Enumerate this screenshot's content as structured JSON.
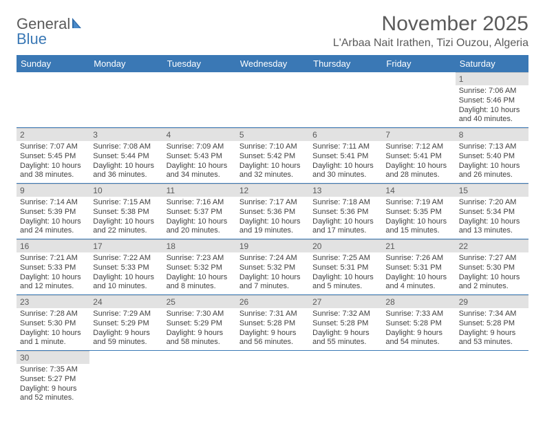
{
  "brand": {
    "part1": "General",
    "part2": "Blue"
  },
  "title": "November 2025",
  "location": "L'Arbaa Nait Irathen, Tizi Ouzou, Algeria",
  "colors": {
    "headerBar": "#3a78b5",
    "dayBar": "#e2e2e2",
    "divider": "#3a78b5",
    "text": "#404040",
    "titleText": "#5a5a5a",
    "background": "#ffffff"
  },
  "typography": {
    "body_fontsize": 11,
    "header_fontsize": 13,
    "title_fontsize": 30,
    "location_fontsize": 16
  },
  "weekdays": [
    "Sunday",
    "Monday",
    "Tuesday",
    "Wednesday",
    "Thursday",
    "Friday",
    "Saturday"
  ],
  "weeks": [
    [
      null,
      null,
      null,
      null,
      null,
      null,
      {
        "n": "1",
        "sunrise": "Sunrise: 7:06 AM",
        "sunset": "Sunset: 5:46 PM",
        "day1": "Daylight: 10 hours",
        "day2": "and 40 minutes."
      }
    ],
    [
      {
        "n": "2",
        "sunrise": "Sunrise: 7:07 AM",
        "sunset": "Sunset: 5:45 PM",
        "day1": "Daylight: 10 hours",
        "day2": "and 38 minutes."
      },
      {
        "n": "3",
        "sunrise": "Sunrise: 7:08 AM",
        "sunset": "Sunset: 5:44 PM",
        "day1": "Daylight: 10 hours",
        "day2": "and 36 minutes."
      },
      {
        "n": "4",
        "sunrise": "Sunrise: 7:09 AM",
        "sunset": "Sunset: 5:43 PM",
        "day1": "Daylight: 10 hours",
        "day2": "and 34 minutes."
      },
      {
        "n": "5",
        "sunrise": "Sunrise: 7:10 AM",
        "sunset": "Sunset: 5:42 PM",
        "day1": "Daylight: 10 hours",
        "day2": "and 32 minutes."
      },
      {
        "n": "6",
        "sunrise": "Sunrise: 7:11 AM",
        "sunset": "Sunset: 5:41 PM",
        "day1": "Daylight: 10 hours",
        "day2": "and 30 minutes."
      },
      {
        "n": "7",
        "sunrise": "Sunrise: 7:12 AM",
        "sunset": "Sunset: 5:41 PM",
        "day1": "Daylight: 10 hours",
        "day2": "and 28 minutes."
      },
      {
        "n": "8",
        "sunrise": "Sunrise: 7:13 AM",
        "sunset": "Sunset: 5:40 PM",
        "day1": "Daylight: 10 hours",
        "day2": "and 26 minutes."
      }
    ],
    [
      {
        "n": "9",
        "sunrise": "Sunrise: 7:14 AM",
        "sunset": "Sunset: 5:39 PM",
        "day1": "Daylight: 10 hours",
        "day2": "and 24 minutes."
      },
      {
        "n": "10",
        "sunrise": "Sunrise: 7:15 AM",
        "sunset": "Sunset: 5:38 PM",
        "day1": "Daylight: 10 hours",
        "day2": "and 22 minutes."
      },
      {
        "n": "11",
        "sunrise": "Sunrise: 7:16 AM",
        "sunset": "Sunset: 5:37 PM",
        "day1": "Daylight: 10 hours",
        "day2": "and 20 minutes."
      },
      {
        "n": "12",
        "sunrise": "Sunrise: 7:17 AM",
        "sunset": "Sunset: 5:36 PM",
        "day1": "Daylight: 10 hours",
        "day2": "and 19 minutes."
      },
      {
        "n": "13",
        "sunrise": "Sunrise: 7:18 AM",
        "sunset": "Sunset: 5:36 PM",
        "day1": "Daylight: 10 hours",
        "day2": "and 17 minutes."
      },
      {
        "n": "14",
        "sunrise": "Sunrise: 7:19 AM",
        "sunset": "Sunset: 5:35 PM",
        "day1": "Daylight: 10 hours",
        "day2": "and 15 minutes."
      },
      {
        "n": "15",
        "sunrise": "Sunrise: 7:20 AM",
        "sunset": "Sunset: 5:34 PM",
        "day1": "Daylight: 10 hours",
        "day2": "and 13 minutes."
      }
    ],
    [
      {
        "n": "16",
        "sunrise": "Sunrise: 7:21 AM",
        "sunset": "Sunset: 5:33 PM",
        "day1": "Daylight: 10 hours",
        "day2": "and 12 minutes."
      },
      {
        "n": "17",
        "sunrise": "Sunrise: 7:22 AM",
        "sunset": "Sunset: 5:33 PM",
        "day1": "Daylight: 10 hours",
        "day2": "and 10 minutes."
      },
      {
        "n": "18",
        "sunrise": "Sunrise: 7:23 AM",
        "sunset": "Sunset: 5:32 PM",
        "day1": "Daylight: 10 hours",
        "day2": "and 8 minutes."
      },
      {
        "n": "19",
        "sunrise": "Sunrise: 7:24 AM",
        "sunset": "Sunset: 5:32 PM",
        "day1": "Daylight: 10 hours",
        "day2": "and 7 minutes."
      },
      {
        "n": "20",
        "sunrise": "Sunrise: 7:25 AM",
        "sunset": "Sunset: 5:31 PM",
        "day1": "Daylight: 10 hours",
        "day2": "and 5 minutes."
      },
      {
        "n": "21",
        "sunrise": "Sunrise: 7:26 AM",
        "sunset": "Sunset: 5:31 PM",
        "day1": "Daylight: 10 hours",
        "day2": "and 4 minutes."
      },
      {
        "n": "22",
        "sunrise": "Sunrise: 7:27 AM",
        "sunset": "Sunset: 5:30 PM",
        "day1": "Daylight: 10 hours",
        "day2": "and 2 minutes."
      }
    ],
    [
      {
        "n": "23",
        "sunrise": "Sunrise: 7:28 AM",
        "sunset": "Sunset: 5:30 PM",
        "day1": "Daylight: 10 hours",
        "day2": "and 1 minute."
      },
      {
        "n": "24",
        "sunrise": "Sunrise: 7:29 AM",
        "sunset": "Sunset: 5:29 PM",
        "day1": "Daylight: 9 hours",
        "day2": "and 59 minutes."
      },
      {
        "n": "25",
        "sunrise": "Sunrise: 7:30 AM",
        "sunset": "Sunset: 5:29 PM",
        "day1": "Daylight: 9 hours",
        "day2": "and 58 minutes."
      },
      {
        "n": "26",
        "sunrise": "Sunrise: 7:31 AM",
        "sunset": "Sunset: 5:28 PM",
        "day1": "Daylight: 9 hours",
        "day2": "and 56 minutes."
      },
      {
        "n": "27",
        "sunrise": "Sunrise: 7:32 AM",
        "sunset": "Sunset: 5:28 PM",
        "day1": "Daylight: 9 hours",
        "day2": "and 55 minutes."
      },
      {
        "n": "28",
        "sunrise": "Sunrise: 7:33 AM",
        "sunset": "Sunset: 5:28 PM",
        "day1": "Daylight: 9 hours",
        "day2": "and 54 minutes."
      },
      {
        "n": "29",
        "sunrise": "Sunrise: 7:34 AM",
        "sunset": "Sunset: 5:28 PM",
        "day1": "Daylight: 9 hours",
        "day2": "and 53 minutes."
      }
    ],
    [
      {
        "n": "30",
        "sunrise": "Sunrise: 7:35 AM",
        "sunset": "Sunset: 5:27 PM",
        "day1": "Daylight: 9 hours",
        "day2": "and 52 minutes."
      },
      null,
      null,
      null,
      null,
      null,
      null
    ]
  ]
}
